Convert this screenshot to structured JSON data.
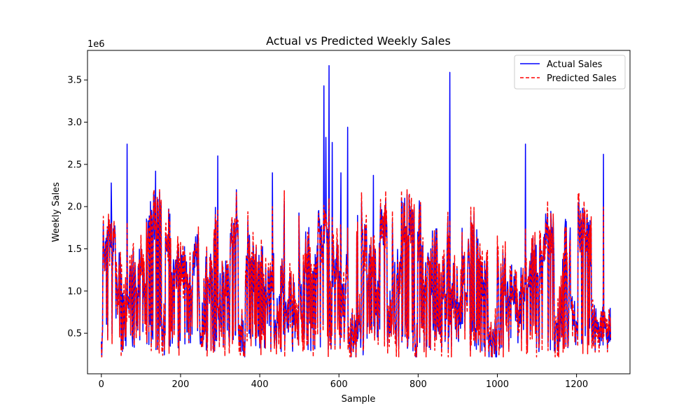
{
  "chart_data": {
    "type": "line",
    "title": "Actual vs Predicted Weekly Sales",
    "xlabel": "Sample",
    "ylabel": "Weekly Sales",
    "y_offset_label": "1e6",
    "xlim": [
      -35,
      1335
    ],
    "ylim": [
      0.02,
      3.85
    ],
    "x_ticks": [
      0,
      200,
      400,
      600,
      800,
      1000,
      1200
    ],
    "x_tick_labels": [
      "0",
      "200",
      "400",
      "600",
      "800",
      "1000",
      "1200"
    ],
    "y_ticks": [
      0.5,
      1.0,
      1.5,
      2.0,
      2.5,
      3.0,
      3.5
    ],
    "y_tick_labels": [
      "0.5",
      "1.0",
      "1.5",
      "2.0",
      "2.5",
      "3.0",
      "3.5"
    ],
    "legend_position": "top-right",
    "grid": false,
    "n_samples": 1287,
    "y_min": 0.22,
    "y_max": 3.67,
    "series": [
      {
        "name": "Actual Sales",
        "color": "#0000ff",
        "style": "solid",
        "peaks": [
          {
            "x": 25,
            "y": 2.28
          },
          {
            "x": 65,
            "y": 2.74
          },
          {
            "x": 137,
            "y": 2.42
          },
          {
            "x": 294,
            "y": 2.6
          },
          {
            "x": 432,
            "y": 2.4
          },
          {
            "x": 562,
            "y": 3.43
          },
          {
            "x": 567,
            "y": 2.82
          },
          {
            "x": 575,
            "y": 3.67
          },
          {
            "x": 583,
            "y": 2.76
          },
          {
            "x": 605,
            "y": 2.4
          },
          {
            "x": 622,
            "y": 2.94
          },
          {
            "x": 687,
            "y": 2.37
          },
          {
            "x": 880,
            "y": 3.59
          },
          {
            "x": 1071,
            "y": 2.74
          },
          {
            "x": 1268,
            "y": 2.62
          }
        ]
      },
      {
        "name": "Predicted Sales",
        "color": "#ff0000",
        "style": "dashed"
      }
    ]
  }
}
